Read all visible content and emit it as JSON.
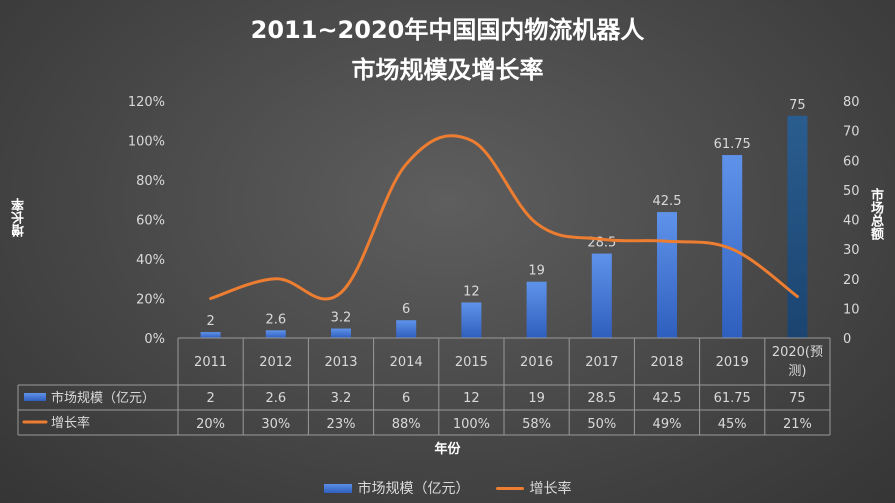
{
  "title_line1": "2011~2020年中国国内物流机器人",
  "title_line2": "市场规模及增长率",
  "ylabel_left": "增长率",
  "ylabel_right": "市场总额",
  "xlabel": "年份",
  "colors": {
    "bar": "#4472c4",
    "bar_last": "#1f4e79",
    "line": "#ed7d31"
  },
  "chart_data": {
    "type": "bar",
    "categories": [
      "2011",
      "2012",
      "2013",
      "2014",
      "2015",
      "2016",
      "2017",
      "2018",
      "2019",
      "2020(预测)"
    ],
    "category_lines": [
      [
        "2011"
      ],
      [
        "2012"
      ],
      [
        "2013"
      ],
      [
        "2014"
      ],
      [
        "2015"
      ],
      [
        "2016"
      ],
      [
        "2017"
      ],
      [
        "2018"
      ],
      [
        "2019"
      ],
      [
        "2020(预",
        "测)"
      ]
    ],
    "series": [
      {
        "name": "市场规模（亿元）",
        "type": "bar",
        "axis": "right",
        "values": [
          2,
          2.6,
          3.2,
          6,
          12,
          19,
          28.5,
          42.5,
          61.75,
          75
        ],
        "labels": [
          "2",
          "2.6",
          "3.2",
          "6",
          "12",
          "19",
          "28.5",
          "42.5",
          "61.75",
          "75"
        ]
      },
      {
        "name": "增长率",
        "type": "line",
        "axis": "left",
        "values": [
          20,
          30,
          23,
          88,
          100,
          58,
          50,
          49,
          45,
          21
        ],
        "labels": [
          "20%",
          "30%",
          "23%",
          "88%",
          "100%",
          "58%",
          "50%",
          "49%",
          "45%",
          "21%"
        ]
      }
    ],
    "left_ticks": [
      "0%",
      "20%",
      "40%",
      "60%",
      "80%",
      "100%",
      "120%"
    ],
    "right_ticks": [
      "0",
      "10",
      "20",
      "30",
      "40",
      "50",
      "60",
      "70",
      "80"
    ],
    "ylim_left": [
      0,
      120
    ],
    "ylim_right": [
      0,
      80
    ],
    "data_table": true,
    "legend_position": "bottom"
  }
}
